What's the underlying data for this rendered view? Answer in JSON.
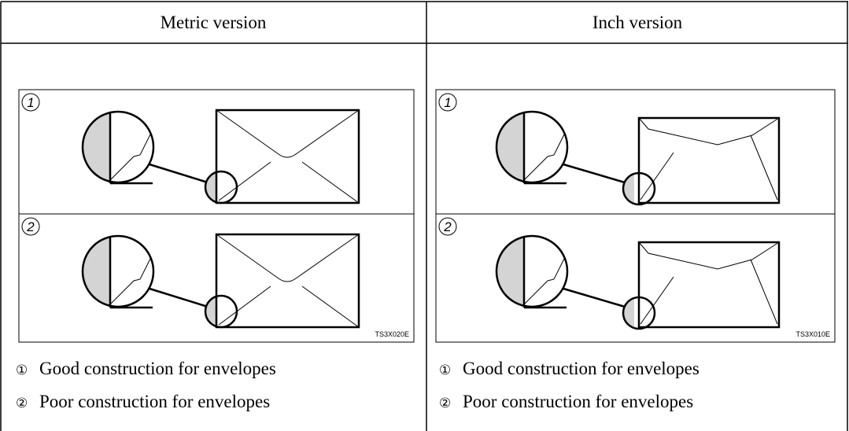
{
  "columns": [
    {
      "header": "Metric version",
      "panels": [
        "1",
        "2"
      ],
      "figure_code": "TS3X020E",
      "captions": [
        {
          "marker": "①",
          "text": "Good construction for envelopes"
        },
        {
          "marker": "②",
          "text": "Poor construction for envelopes"
        }
      ]
    },
    {
      "header": "Inch version",
      "panels": [
        "1",
        "2"
      ],
      "figure_code": "TS3X010E",
      "captions": [
        {
          "marker": "①",
          "text": "Good construction for envelopes"
        },
        {
          "marker": "②",
          "text": "Poor construction for envelopes"
        }
      ]
    }
  ]
}
